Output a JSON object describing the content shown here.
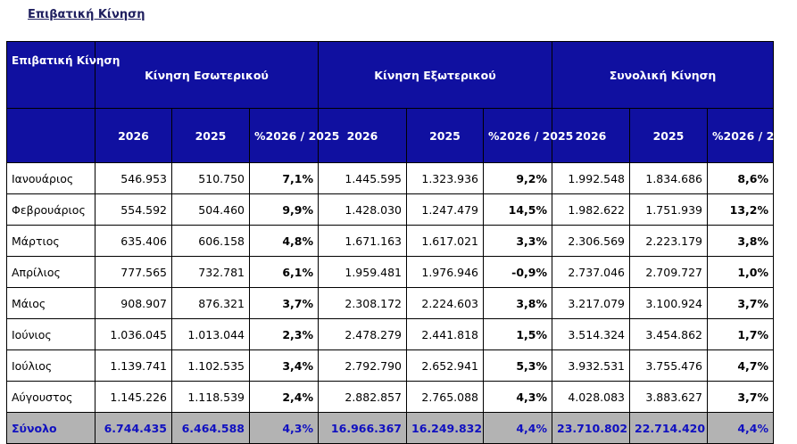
{
  "heading": "Επιβατική Κίνηση",
  "table": {
    "corner_label": "Επιβατική Κίνηση",
    "groups": [
      "Κίνηση Εσωτερικού",
      "Κίνηση Εξωτερικού",
      "Συνολική Κίνηση"
    ],
    "subheaders": [
      "2026",
      "2025",
      "%2026 / 2025"
    ],
    "rows": [
      {
        "month": "Ιανουάριος",
        "values": [
          "546.953",
          "510.750",
          "7,1%",
          "1.445.595",
          "1.323.936",
          "9,2%",
          "1.992.548",
          "1.834.686",
          "8,6%"
        ]
      },
      {
        "month": "Φεβρουάριος",
        "values": [
          "554.592",
          "504.460",
          "9,9%",
          "1.428.030",
          "1.247.479",
          "14,5%",
          "1.982.622",
          "1.751.939",
          "13,2%"
        ]
      },
      {
        "month": "Μάρτιος",
        "values": [
          "635.406",
          "606.158",
          "4,8%",
          "1.671.163",
          "1.617.021",
          "3,3%",
          "2.306.569",
          "2.223.179",
          "3,8%"
        ]
      },
      {
        "month": "Απρίλιος",
        "values": [
          "777.565",
          "732.781",
          "6,1%",
          "1.959.481",
          "1.976.946",
          "-0,9%",
          "2.737.046",
          "2.709.727",
          "1,0%"
        ]
      },
      {
        "month": "Μάιος",
        "values": [
          "908.907",
          "876.321",
          "3,7%",
          "2.308.172",
          "2.224.603",
          "3,8%",
          "3.217.079",
          "3.100.924",
          "3,7%"
        ]
      },
      {
        "month": "Ιούνιος",
        "values": [
          "1.036.045",
          "1.013.044",
          "2,3%",
          "2.478.279",
          "2.441.818",
          "1,5%",
          "3.514.324",
          "3.454.862",
          "1,7%"
        ]
      },
      {
        "month": "Ιούλιος",
        "values": [
          "1.139.741",
          "1.102.535",
          "3,4%",
          "2.792.790",
          "2.652.941",
          "5,3%",
          "3.932.531",
          "3.755.476",
          "4,7%"
        ]
      },
      {
        "month": "Αύγουστος",
        "values": [
          "1.145.226",
          "1.118.539",
          "2,4%",
          "2.882.857",
          "2.765.088",
          "4,3%",
          "4.028.083",
          "3.883.627",
          "3,7%"
        ]
      }
    ],
    "total": {
      "label": "Σύνολο",
      "values": [
        "6.744.435",
        "6.464.588",
        "4,3%",
        "16.966.367",
        "16.249.832",
        "4,4%",
        "23.710.802",
        "22.714.420",
        "4,4%"
      ]
    }
  },
  "colors": {
    "header_bg": "#1010a0",
    "header_text": "#ffffff",
    "total_bg": "#b3b3b3",
    "total_text": "#1010c0",
    "heading_text": "#1f1f5f"
  }
}
